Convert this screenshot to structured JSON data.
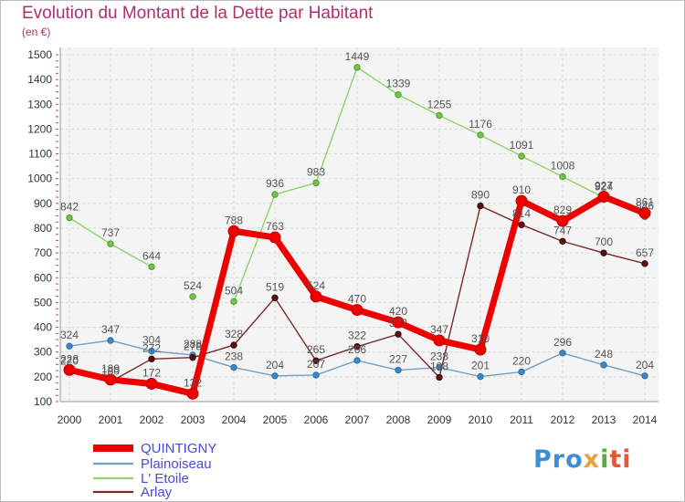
{
  "chart_data": {
    "type": "line",
    "title": "Evolution du Montant de la Dette par Habitant",
    "subtitle": "(en €)",
    "x": [
      "2000",
      "2001",
      "2002",
      "2003",
      "2004",
      "2005",
      "2006",
      "2007",
      "2008",
      "2009",
      "2010",
      "2011",
      "2012",
      "2013",
      "2014"
    ],
    "ylim": [
      100,
      1500
    ],
    "yticks": [
      100,
      200,
      300,
      400,
      500,
      600,
      700,
      800,
      900,
      1000,
      1100,
      1200,
      1300,
      1400,
      1500
    ],
    "grid": true,
    "legend_position": "bottom-left",
    "series": [
      {
        "name": "L' Etoile",
        "color": "#8fd36a",
        "values": [
          842,
          737,
          644,
          null,
          504,
          936,
          983,
          1449,
          1339,
          1255,
          1176,
          1091,
          1008,
          924,
          846
        ],
        "labels": [
          "842",
          "737",
          "644",
          "524",
          "504",
          "936",
          "983",
          "1449",
          "1339",
          "1255",
          "1176",
          "1091",
          "1008",
          "924",
          "846"
        ],
        "extra_points": [
          {
            "x": "2003",
            "value": 524
          }
        ]
      },
      {
        "name": "Plainoiseau",
        "color": "#6fa0c8",
        "values": [
          324,
          347,
          304,
          288,
          238,
          204,
          207,
          266,
          227,
          238,
          201,
          220,
          296,
          248,
          204
        ],
        "labels": [
          "324",
          "347",
          "304",
          "288",
          "238",
          "204",
          "207",
          "266",
          "227",
          "238",
          "201",
          "220",
          "296",
          "248",
          "204"
        ]
      },
      {
        "name": "Arlay",
        "color": "#7a2a2a",
        "values": [
          220,
          180,
          272,
          278,
          328,
          519,
          265,
          322,
          372,
          198,
          890,
          814,
          747,
          700,
          657
        ],
        "labels": [
          "220",
          "180",
          "272",
          "278",
          "328",
          "519",
          "265",
          "322",
          "372",
          "198",
          "890",
          "814",
          "747",
          "700",
          "657"
        ]
      },
      {
        "name": "QUINTIGNY",
        "color": "#ee0000",
        "values": [
          228,
          189,
          172,
          132,
          788,
          763,
          524,
          470,
          420,
          347,
          310,
          910,
          829,
          927,
          861
        ],
        "labels": [
          "228",
          "189",
          "172",
          "132",
          "788",
          "763",
          "524",
          "470",
          "420",
          "347",
          "310",
          "910",
          "829",
          "927",
          "861"
        ]
      }
    ]
  },
  "legend": [
    {
      "label": "QUINTIGNY",
      "color": "#ee0000"
    },
    {
      "label": "Plainoiseau",
      "color": "#6fa0c8"
    },
    {
      "label": "L' Etoile",
      "color": "#8fd36a"
    },
    {
      "label": "Arlay",
      "color": "#7a2a2a"
    }
  ],
  "logo": {
    "p1": "Pro",
    "p2": "x",
    "p3": "i",
    "p4": "ti"
  }
}
